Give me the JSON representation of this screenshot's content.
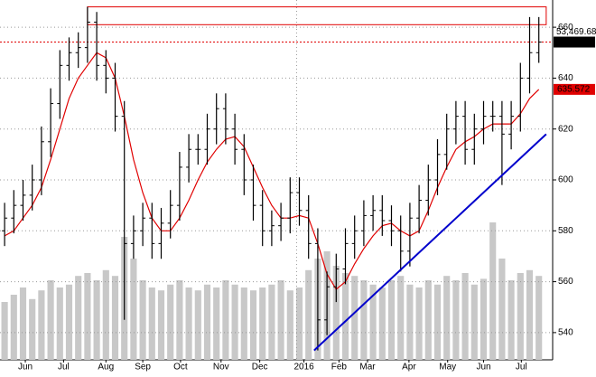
{
  "chart_data": {
    "type": "ohlc",
    "color": "#000000",
    "x": [
      0,
      1,
      2,
      3,
      4,
      5,
      6,
      7,
      8,
      9,
      10,
      11,
      12,
      13,
      14,
      15,
      16,
      17,
      18,
      19,
      20,
      21,
      22,
      23,
      24,
      25,
      26,
      27,
      28,
      29,
      30,
      31,
      32,
      33,
      34,
      35,
      36,
      37,
      38,
      39,
      40,
      41,
      42,
      43,
      44,
      45,
      46,
      47,
      48,
      49,
      50,
      51,
      52,
      53,
      54,
      55,
      56,
      57,
      58
    ],
    "open": [
      580,
      585,
      590,
      594,
      600,
      615,
      630,
      645,
      650,
      652,
      662,
      645,
      640,
      625,
      575,
      580,
      585,
      575,
      583,
      590,
      605,
      612,
      612,
      620,
      628,
      620,
      612,
      600,
      590,
      580,
      582,
      585,
      595,
      588,
      575,
      545,
      558,
      565,
      575,
      580,
      586,
      588,
      584,
      580,
      572,
      585,
      592,
      600,
      610,
      620,
      625,
      612,
      620,
      625,
      625,
      618,
      625,
      640,
      650
    ],
    "high": [
      591,
      596,
      600,
      606,
      621,
      636,
      651,
      656,
      658,
      668,
      666,
      651,
      646,
      631,
      586,
      591,
      591,
      589,
      596,
      611,
      618,
      618,
      626,
      634,
      634,
      626,
      618,
      606,
      596,
      588,
      591,
      601,
      601,
      594,
      581,
      564,
      571,
      581,
      586,
      592,
      594,
      594,
      590,
      586,
      591,
      598,
      606,
      616,
      626,
      631,
      631,
      626,
      631,
      631,
      631,
      631,
      646,
      664,
      664
    ],
    "low": [
      574,
      579,
      584,
      588,
      594,
      609,
      624,
      639,
      644,
      646,
      639,
      634,
      619,
      545,
      569,
      574,
      569,
      569,
      577,
      584,
      599,
      606,
      606,
      614,
      614,
      606,
      594,
      584,
      574,
      574,
      576,
      579,
      582,
      569,
      533,
      539,
      552,
      559,
      569,
      574,
      580,
      578,
      574,
      564,
      566,
      579,
      586,
      594,
      604,
      614,
      606,
      606,
      614,
      619,
      598,
      612,
      619,
      634,
      646
    ],
    "close": [
      585,
      590,
      594,
      600,
      615,
      630,
      645,
      650,
      652,
      662,
      645,
      640,
      625,
      575,
      580,
      585,
      575,
      583,
      590,
      605,
      612,
      612,
      620,
      628,
      620,
      612,
      600,
      590,
      580,
      582,
      585,
      595,
      588,
      575,
      545,
      558,
      565,
      575,
      580,
      586,
      588,
      584,
      580,
      572,
      585,
      592,
      600,
      610,
      620,
      625,
      612,
      620,
      625,
      625,
      618,
      625,
      640,
      650,
      654.17
    ],
    "ma": {
      "color": "#e00000",
      "values": [
        578,
        580,
        585,
        590,
        597,
        608,
        620,
        632,
        640,
        645,
        650,
        648,
        640,
        625,
        608,
        595,
        585,
        580,
        580,
        585,
        592,
        600,
        607,
        612,
        616,
        617,
        613,
        605,
        597,
        590,
        585,
        585,
        586,
        585,
        575,
        563,
        557,
        560,
        567,
        573,
        578,
        582,
        583,
        580,
        578,
        580,
        588,
        597,
        605,
        612,
        615,
        617,
        620,
        622,
        622,
        622,
        626,
        632,
        635.572
      ]
    },
    "volume": {
      "color": "#c8c8c8",
      "vlim": [
        0,
        100
      ],
      "values": [
        40,
        45,
        50,
        42,
        48,
        55,
        50,
        52,
        58,
        60,
        55,
        62,
        58,
        85,
        70,
        55,
        50,
        48,
        52,
        55,
        50,
        48,
        52,
        50,
        55,
        52,
        50,
        48,
        50,
        52,
        55,
        48,
        50,
        62,
        70,
        75,
        65,
        60,
        58,
        55,
        52,
        50,
        55,
        58,
        52,
        50,
        55,
        52,
        58,
        55,
        60,
        52,
        56,
        95,
        70,
        55,
        60,
        62,
        58
      ]
    },
    "xlim": [
      -0.5,
      59.5
    ],
    "xticks": [
      {
        "value": 2.25,
        "label": "Jun"
      },
      {
        "value": 6.4,
        "label": "Jul"
      },
      {
        "value": 11,
        "label": "Aug"
      },
      {
        "value": 15,
        "label": "Sep"
      },
      {
        "value": 19.1,
        "label": "Oct"
      },
      {
        "value": 23.5,
        "label": "Nov"
      },
      {
        "value": 27.7,
        "label": "Dec"
      },
      {
        "value": 32.5,
        "label": "2016"
      },
      {
        "value": 36.3,
        "label": "Feb"
      },
      {
        "value": 39.4,
        "label": "Mar"
      },
      {
        "value": 43.9,
        "label": "Apr"
      },
      {
        "value": 48.1,
        "label": "May"
      },
      {
        "value": 52,
        "label": "Jun"
      },
      {
        "value": 56.1,
        "label": "Jul"
      }
    ],
    "xgrid": [
      31.7
    ],
    "ylim": [
      529.3,
      670.7
    ],
    "yticks": [
      540,
      560,
      580,
      600,
      620,
      640,
      660
    ],
    "grid": true,
    "annotation": "53,469.68",
    "trendline": {
      "color": "#0000cc",
      "x": [
        33.6,
        58.8
      ],
      "y": [
        533,
        618
      ]
    },
    "highlight_box": {
      "color": "#e00000",
      "x": [
        9,
        58.8
      ],
      "y": [
        661,
        668
      ]
    }
  }
}
